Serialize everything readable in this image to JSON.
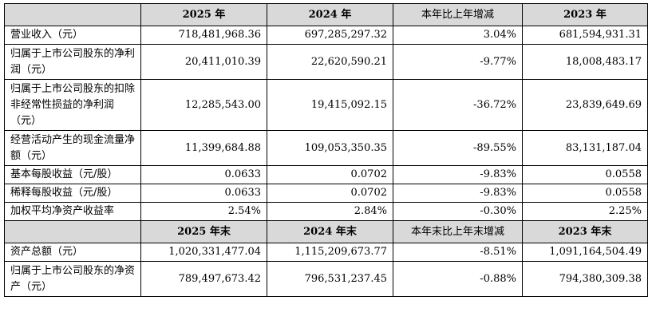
{
  "table": {
    "header1": [
      "2025 年",
      "2024 年",
      "本年比上年增减",
      "2023 年"
    ],
    "rows1": [
      {
        "label": "营业收入（元）",
        "v": [
          "718,481,968.36",
          "697,285,297.32",
          "3.04%",
          "681,594,931.31"
        ]
      },
      {
        "label": "归属于上市公司股东的净利润（元）",
        "v": [
          "20,411,010.39",
          "22,620,590.21",
          "-9.77%",
          "18,008,483.17"
        ]
      },
      {
        "label": "归属于上市公司股东的扣除非经常性损益的净利润（元）",
        "v": [
          "12,285,543.00",
          "19,415,092.15",
          "-36.72%",
          "23,839,649.69"
        ]
      },
      {
        "label": "经营活动产生的现金流量净额（元）",
        "v": [
          "11,399,684.88",
          "109,053,350.35",
          "-89.55%",
          "83,131,187.04"
        ]
      },
      {
        "label": "基本每股收益（元/股）",
        "v": [
          "0.0633",
          "0.0702",
          "-9.83%",
          "0.0558"
        ]
      },
      {
        "label": "稀释每股收益（元/股）",
        "v": [
          "0.0633",
          "0.0702",
          "-9.83%",
          "0.0558"
        ]
      },
      {
        "label": "加权平均净资产收益率",
        "v": [
          "2.54%",
          "2.84%",
          "-0.30%",
          "2.25%"
        ]
      }
    ],
    "header2": [
      "2025 年末",
      "2024 年末",
      "本年末比上年末增减",
      "2023 年末"
    ],
    "rows2": [
      {
        "label": "资产总额（元）",
        "v": [
          "1,020,331,477.04",
          "1,115,209,673.77",
          "-8.51%",
          "1,091,164,504.49"
        ]
      },
      {
        "label": "归属于上市公司股东的净资产（元）",
        "v": [
          "789,497,673.42",
          "796,531,237.45",
          "-0.88%",
          "794,380,309.38"
        ]
      }
    ]
  }
}
